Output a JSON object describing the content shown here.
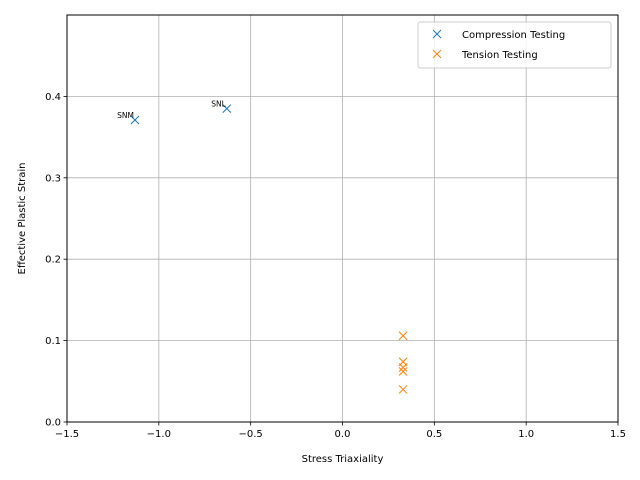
{
  "chart_data": {
    "type": "scatter",
    "xlabel": "Stress Triaxiality",
    "ylabel": "Effective Plastic Strain",
    "xlim": [
      -1.5,
      1.5
    ],
    "ylim": [
      0,
      0.5
    ],
    "xticks": [
      -1.5,
      -1.0,
      -0.5,
      0.0,
      0.5,
      1.0,
      1.5
    ],
    "xtick_labels": [
      "−1.5",
      "−1.0",
      "−0.5",
      "0.0",
      "0.5",
      "1.0",
      "1.5"
    ],
    "yticks": [
      0.0,
      0.1,
      0.2,
      0.3,
      0.4
    ],
    "ytick_labels": [
      "0.0",
      "0.1",
      "0.2",
      "0.3",
      "0.4"
    ],
    "grid": true,
    "legend_position": "top-right",
    "marker": "x",
    "series": [
      {
        "name": "Compression Testing",
        "color": "#1f77b4",
        "points": [
          {
            "x": -1.13,
            "y": 0.371
          },
          {
            "x": -0.63,
            "y": 0.385
          }
        ]
      },
      {
        "name": "Tension Testing",
        "color": "#ff7f0e",
        "points": [
          {
            "x": 0.33,
            "y": 0.106
          },
          {
            "x": 0.33,
            "y": 0.074
          },
          {
            "x": 0.33,
            "y": 0.067
          },
          {
            "x": 0.33,
            "y": 0.062
          },
          {
            "x": 0.33,
            "y": 0.04
          }
        ]
      }
    ],
    "annotations": [
      {
        "text": "SNM",
        "x": -1.13,
        "y": 0.371
      },
      {
        "text": "SNL",
        "x": -0.63,
        "y": 0.385
      }
    ]
  }
}
